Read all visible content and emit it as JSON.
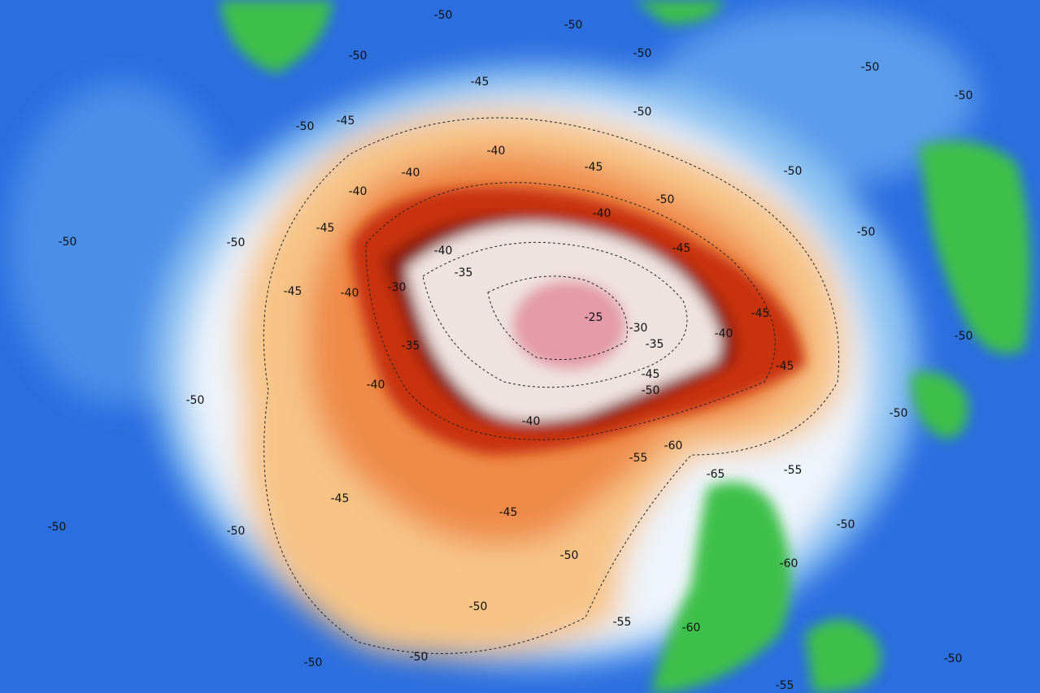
{
  "map": {
    "colors": {
      "background_blue": "#2a6ee0",
      "light_blue": "#8fc4f2",
      "white": "#eef4fb",
      "orange_light": "#f7c486",
      "orange": "#ef8a4a",
      "red": "#c8300e",
      "dark_red": "#8a1a08",
      "pale_center": "#efe3e0",
      "pink_core": "#e49aa8",
      "green": "#3cc04a",
      "contour": "#222222"
    },
    "contour_labels": [
      "-50",
      "-50",
      "-50",
      "-50",
      "-50",
      "-50",
      "-45",
      "-50",
      "-50",
      "-45",
      "-40",
      "-40",
      "-45",
      "-50",
      "-40",
      "-50",
      "-50",
      "-45",
      "-40",
      "-50",
      "-50",
      "-40",
      "-45",
      "-35",
      "-30",
      "-45",
      "-40",
      "-25",
      "-45",
      "-50",
      "-30",
      "-35",
      "-40",
      "-35",
      "-45",
      "-45",
      "-50",
      "-40",
      "-50",
      "-50",
      "-40",
      "-60",
      "-55",
      "-65",
      "-55",
      "-45",
      "-45",
      "-50",
      "-50",
      "-50",
      "-50",
      "-60",
      "-50",
      "-55",
      "-60",
      "-50",
      "-50",
      "-50",
      "-55"
    ]
  }
}
